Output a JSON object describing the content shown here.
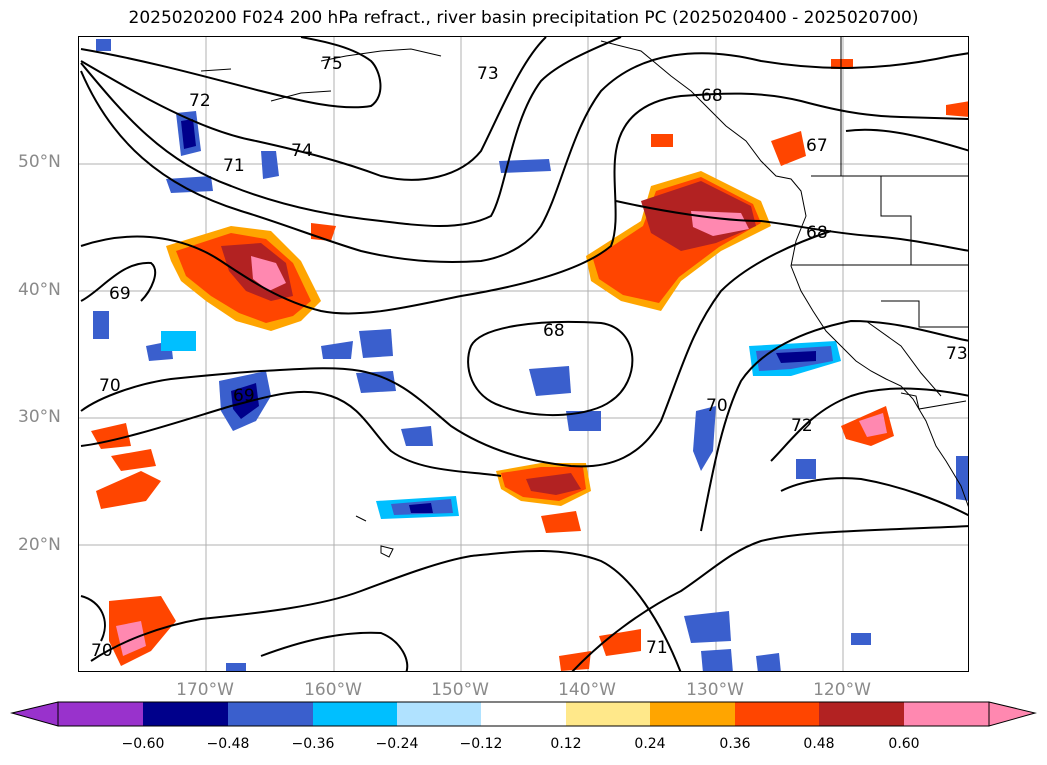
{
  "title": "2025020200 F024 200 hPa refract., river basin precipitation PC (2025020400 - 2025020700)",
  "lat_labels": [
    "50°N",
    "40°N",
    "30°N",
    "20°N"
  ],
  "lon_labels": [
    "170°W",
    "160°W",
    "150°W",
    "140°W",
    "130°W",
    "120°W"
  ],
  "contour_labels": [
    "75",
    "73",
    "72",
    "74",
    "71",
    "69",
    "70",
    "68",
    "68",
    "69",
    "67",
    "68",
    "70",
    "72",
    "71",
    "70",
    "73"
  ],
  "colorbar": {
    "ticks": [
      "−0.60",
      "−0.48",
      "−0.36",
      "−0.24",
      "−0.12",
      "0.12",
      "0.24",
      "0.36",
      "0.48",
      "0.60"
    ],
    "colors": [
      "#9932cc",
      "#00008b",
      "#3a5fcd",
      "#00bfff",
      "#b0e2ff",
      "#ffffff",
      "#ffe88a",
      "#ffa500",
      "#ff4500",
      "#b22222",
      "#ff88b0"
    ]
  },
  "colors": {
    "neg_deep": "#00008b",
    "neg_mid": "#3a5fcd",
    "neg_light": "#00bfff",
    "neg_pale": "#b0e2ff",
    "pos_pale": "#ffe88a",
    "pos_orange": "#ffa500",
    "pos_red": "#ff4500",
    "pos_dark": "#b22222",
    "pos_pink": "#ff88b0"
  }
}
